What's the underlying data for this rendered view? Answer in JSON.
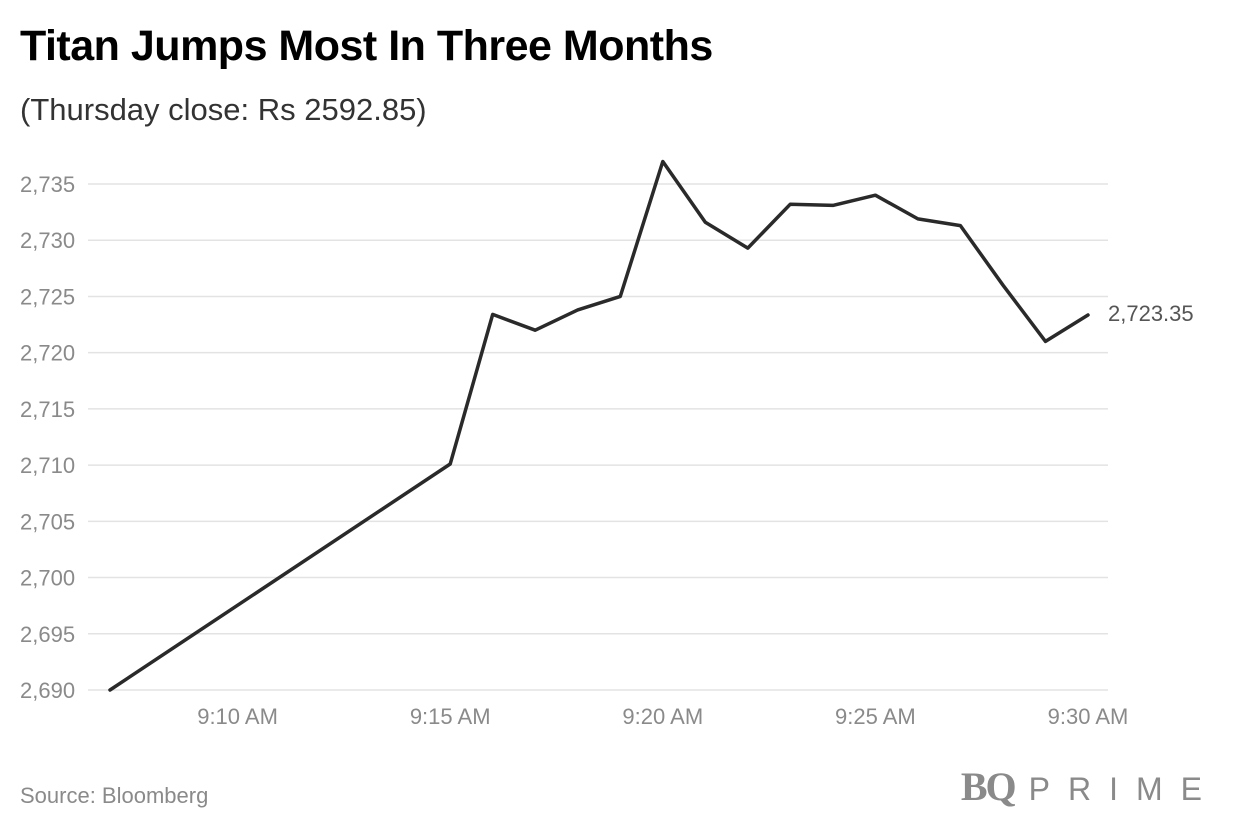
{
  "title": "Titan Jumps Most In Three Months",
  "subtitle": "(Thursday close: Rs 2592.85)",
  "source": "Source: Bloomberg",
  "brand": {
    "bq": "BQ",
    "prime": "PRIME"
  },
  "colors": {
    "line": "#2a2a2a",
    "grid": "#e3e3e3",
    "tick_text": "#8a8a8a"
  },
  "chart_data": {
    "type": "line",
    "title": "Titan Jumps Most In Three Months",
    "subtitle": "(Thursday close: Rs 2592.85)",
    "xlabel": "",
    "ylabel": "",
    "ylim": [
      2690,
      2735
    ],
    "yticks": [
      2690,
      2695,
      2700,
      2705,
      2710,
      2715,
      2720,
      2725,
      2730,
      2735
    ],
    "ytick_labels": [
      "2,690",
      "2,695",
      "2,700",
      "2,705",
      "2,710",
      "2,715",
      "2,720",
      "2,725",
      "2,730",
      "2,735"
    ],
    "xlim": [
      "9:07 AM",
      "9:30 AM"
    ],
    "xticks": [
      "9:10 AM",
      "9:15 AM",
      "9:20 AM",
      "9:25 AM",
      "9:30 AM"
    ],
    "grid": true,
    "x": [
      "9:07 AM",
      "9:15 AM",
      "9:16 AM",
      "9:17 AM",
      "9:18 AM",
      "9:19 AM",
      "9:20 AM",
      "9:21 AM",
      "9:22 AM",
      "9:23 AM",
      "9:24 AM",
      "9:25 AM",
      "9:26 AM",
      "9:27 AM",
      "9:28 AM",
      "9:29 AM",
      "9:30 AM"
    ],
    "series": [
      {
        "values": [
          2690.0,
          2710.1,
          2723.4,
          2722.0,
          2723.8,
          2725.0,
          2737.0,
          2731.6,
          2729.3,
          2733.2,
          2733.1,
          2734.0,
          2731.9,
          2731.3,
          2726.0,
          2721.0,
          2723.35
        ]
      }
    ],
    "last_value_label": "2,723.35"
  }
}
